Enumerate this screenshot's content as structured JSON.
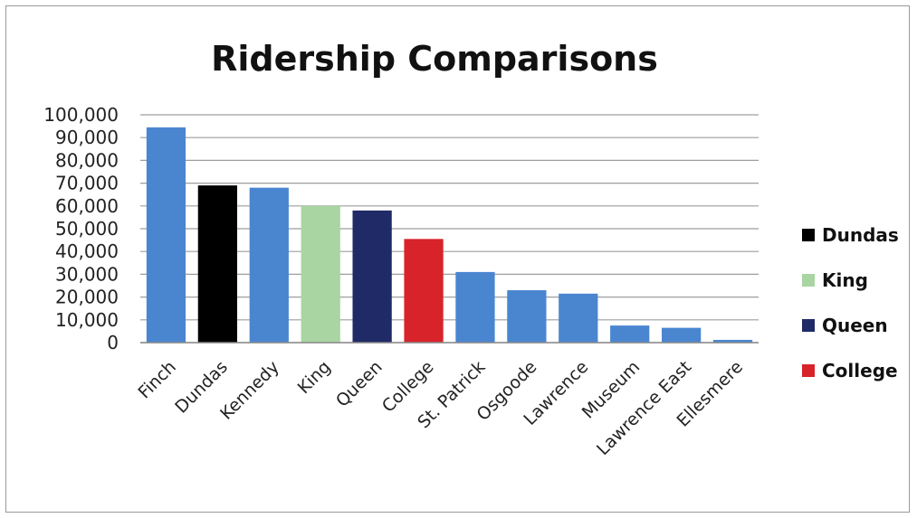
{
  "chart_data": {
    "type": "bar",
    "title": "Ridership Comparisons",
    "xlabel": "",
    "ylabel": "",
    "ylim": [
      0,
      100000
    ],
    "yticks": [
      0,
      10000,
      20000,
      30000,
      40000,
      50000,
      60000,
      70000,
      80000,
      90000,
      100000
    ],
    "ytick_labels": [
      "0",
      "10,000",
      "20,000",
      "30,000",
      "40,000",
      "50,000",
      "60,000",
      "70,000",
      "80,000",
      "90,000",
      "100,000"
    ],
    "grid": true,
    "legend_position": "right",
    "categories": [
      "Finch",
      "Dundas",
      "Kennedy",
      "King",
      "Queen",
      "College",
      "St. Patrick",
      "Osgoode",
      "Lawrence",
      "Museum",
      "Lawrence East",
      "Ellesmere"
    ],
    "values": [
      94500,
      69000,
      68000,
      60000,
      58000,
      45500,
      31000,
      23000,
      21500,
      7500,
      6500,
      1200
    ],
    "bar_colors": [
      "#4a86d0",
      "#000000",
      "#4a86d0",
      "#a8d5a2",
      "#1f2a66",
      "#d8232a",
      "#4a86d0",
      "#4a86d0",
      "#4a86d0",
      "#4a86d0",
      "#4a86d0",
      "#4a86d0"
    ],
    "legend": [
      {
        "label": "Dundas",
        "color": "#000000"
      },
      {
        "label": "King",
        "color": "#a8d5a2"
      },
      {
        "label": "Queen",
        "color": "#1f2a66"
      },
      {
        "label": "College",
        "color": "#d8232a"
      }
    ]
  }
}
